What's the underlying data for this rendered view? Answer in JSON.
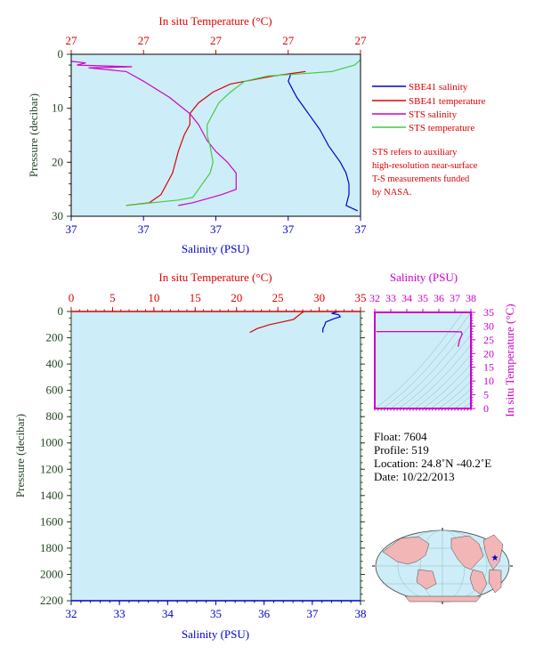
{
  "colors": {
    "temperature": "#dd0000",
    "salinity_sbe": "#0000cc",
    "sts_salinity": "#cc00cc",
    "sts_temperature": "#44cc44",
    "ts_axis": "#cc00cc",
    "plot_bg": "#cdeef8",
    "pressure_axis": "#224422"
  },
  "chart_data": [
    {
      "type": "line",
      "top_axis": {
        "label": "In situ Temperature (°C)",
        "ticks": [
          "27",
          "27",
          "27",
          "27",
          "27"
        ]
      },
      "bottom_axis": {
        "label": "Salinity (PSU)",
        "ticks": [
          "37",
          "37",
          "37",
          "37",
          "37"
        ]
      },
      "ylabel": "Pressure (decibar)",
      "ylim": [
        0,
        30
      ],
      "yticks": [
        0,
        10,
        20,
        30
      ],
      "x_axis_span": [
        0,
        1
      ],
      "legend": [
        "SBE41 salinity",
        "SBE41 temperature",
        "STS salinity",
        "STS temperature"
      ],
      "note": [
        "STS refers to auxiliary",
        "high-resolution near-surface",
        "T-S measurements funded",
        "by NASA."
      ],
      "series": [
        {
          "name": "SBE41 salinity",
          "axis": "bottom",
          "points": [
            [
              0.76,
              3.5
            ],
            [
              0.75,
              5
            ],
            [
              0.78,
              8
            ],
            [
              0.82,
              11
            ],
            [
              0.86,
              14
            ],
            [
              0.89,
              17
            ],
            [
              0.93,
              20
            ],
            [
              0.95,
              22
            ],
            [
              0.96,
              24
            ],
            [
              0.96,
              26
            ],
            [
              0.95,
              28
            ],
            [
              0.99,
              29
            ]
          ]
        },
        {
          "name": "SBE41 temperature",
          "axis": "top",
          "points": [
            [
              0.81,
              3.2
            ],
            [
              0.7,
              4
            ],
            [
              0.55,
              5.5
            ],
            [
              0.49,
              7
            ],
            [
              0.44,
              9
            ],
            [
              0.41,
              11
            ],
            [
              0.41,
              13
            ],
            [
              0.39,
              15
            ],
            [
              0.37,
              18
            ],
            [
              0.35,
              22
            ],
            [
              0.33,
              24
            ],
            [
              0.31,
              26
            ],
            [
              0.27,
              27.5
            ],
            [
              0.19,
              28
            ]
          ]
        },
        {
          "name": "STS salinity",
          "axis": "bottom",
          "points": [
            [
              0.0,
              1.3
            ],
            [
              0.05,
              1.6
            ],
            [
              0.02,
              2
            ],
            [
              0.21,
              2.3
            ],
            [
              0.06,
              2.5
            ],
            [
              0.19,
              3.2
            ],
            [
              0.25,
              5
            ],
            [
              0.34,
              8
            ],
            [
              0.41,
              11
            ],
            [
              0.44,
              13
            ],
            [
              0.47,
              16
            ],
            [
              0.5,
              18
            ],
            [
              0.54,
              20
            ],
            [
              0.57,
              22
            ],
            [
              0.57,
              25
            ],
            [
              0.52,
              26
            ],
            [
              0.42,
              27.5
            ],
            [
              0.37,
              28
            ]
          ]
        },
        {
          "name": "STS temperature",
          "axis": "top",
          "points": [
            [
              1.0,
              1
            ],
            [
              0.98,
              2
            ],
            [
              0.9,
              3.2
            ],
            [
              0.8,
              3.6
            ],
            [
              0.68,
              4
            ],
            [
              0.6,
              5
            ],
            [
              0.55,
              7
            ],
            [
              0.51,
              9
            ],
            [
              0.49,
              11
            ],
            [
              0.47,
              13
            ],
            [
              0.47,
              15
            ],
            [
              0.48,
              17
            ],
            [
              0.49,
              20
            ],
            [
              0.48,
              22
            ],
            [
              0.44,
              25
            ],
            [
              0.42,
              26.5
            ],
            [
              0.37,
              27
            ],
            [
              0.19,
              28
            ]
          ]
        }
      ]
    },
    {
      "type": "line",
      "top_axis": {
        "label": "In situ Temperature (°C)",
        "range": [
          0,
          35
        ],
        "ticks": [
          0,
          5,
          10,
          15,
          20,
          25,
          30,
          35
        ]
      },
      "bottom_axis": {
        "label": "Salinity (PSU)",
        "range": [
          32,
          38
        ],
        "ticks": [
          32,
          33,
          34,
          35,
          36,
          37,
          38
        ]
      },
      "ylabel": "Pressure (decibar)",
      "ylim": [
        0,
        2200
      ],
      "yticks": [
        0,
        200,
        400,
        600,
        800,
        1000,
        1200,
        1400,
        1600,
        1800,
        2000,
        2200
      ],
      "series": [
        {
          "name": "SBE41 temperature",
          "axis": "top",
          "points": [
            [
              28.2,
              0
            ],
            [
              27.9,
              10
            ],
            [
              27.5,
              30
            ],
            [
              26.9,
              60
            ],
            [
              25.5,
              80
            ],
            [
              24.0,
              100
            ],
            [
              22.5,
              130
            ],
            [
              21.6,
              160
            ]
          ]
        },
        {
          "name": "SBE41 salinity",
          "axis": "bottom",
          "points": [
            [
              37.55,
              0
            ],
            [
              37.4,
              15
            ],
            [
              37.55,
              25
            ],
            [
              37.58,
              40
            ],
            [
              37.45,
              55
            ],
            [
              37.28,
              80
            ],
            [
              37.25,
              110
            ],
            [
              37.22,
              130
            ],
            [
              37.22,
              160
            ]
          ]
        }
      ]
    },
    {
      "type": "line",
      "title": "Salinity (PSU)",
      "xlabel": "Salinity (PSU)",
      "ylabel": "In situ Temperature (°C)",
      "xlim": [
        32,
        38
      ],
      "ylim": [
        0,
        35
      ],
      "xticks": [
        32,
        33,
        34,
        35,
        36,
        37,
        38
      ],
      "yticks": [
        0,
        5,
        10,
        15,
        20,
        25,
        30,
        35
      ],
      "series": [
        {
          "name": "T-S",
          "points": [
            [
              32.1,
              28.0
            ],
            [
              36.5,
              28.0
            ],
            [
              37.4,
              27.9
            ],
            [
              37.45,
              27.0
            ],
            [
              37.3,
              25.0
            ],
            [
              37.2,
              22.5
            ]
          ]
        }
      ]
    }
  ],
  "float_info": {
    "float": "Float:  7604",
    "profile": "Profile:  519",
    "location": "Location:  24.8˚N  -40.2˚E",
    "date": "Date:  10/22/2013"
  }
}
